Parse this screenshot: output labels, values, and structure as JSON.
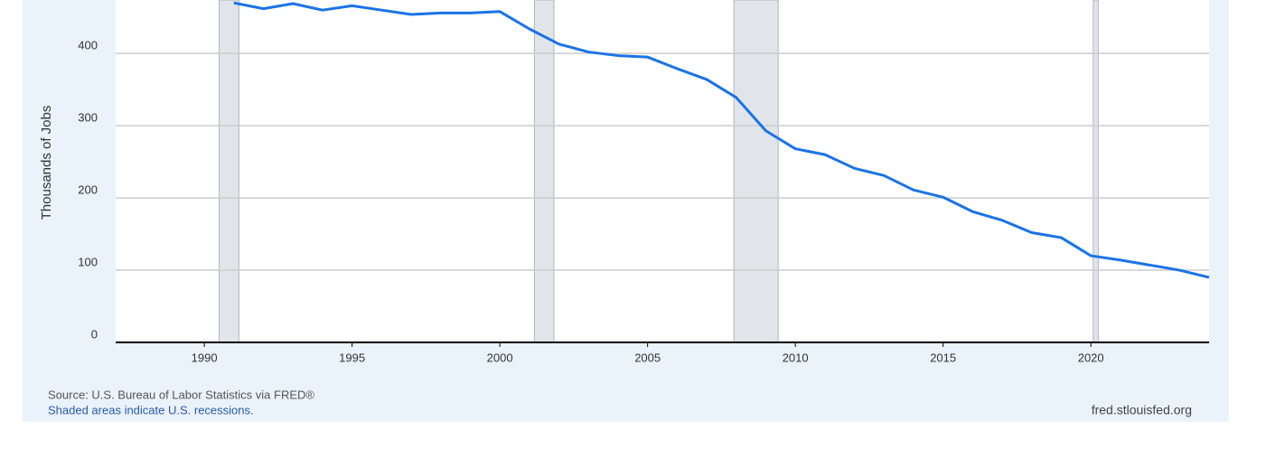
{
  "chart_data": {
    "type": "line",
    "y_label": "Thousands of Jobs",
    "source": "Source: U.S. Bureau of Labor Statistics via FRED®",
    "note": "Shaded areas indicate U.S. recessions.",
    "credit": "fred.stlouisfed.org",
    "x": [
      1991,
      1992,
      1993,
      1994,
      1995,
      1996,
      1997,
      1998,
      1999,
      2000,
      2001,
      2002,
      2003,
      2004,
      2005,
      2006,
      2007,
      2008,
      2009,
      2010,
      2011,
      2012,
      2013,
      2014,
      2015,
      2016,
      2017,
      2018,
      2019,
      2020,
      2021,
      2022,
      2023,
      2024
    ],
    "series": [
      {
        "color": "#1a73e8",
        "values": [
          470,
          462,
          469,
          460,
          466,
          460,
          454,
          456,
          456,
          458,
          434,
          413,
          402,
          397,
          395,
          379,
          364,
          339,
          293,
          268,
          260,
          241,
          231,
          211,
          201,
          181,
          169,
          152,
          145,
          120,
          114,
          107,
          100,
          90
        ]
      }
    ],
    "recessions": [
      [
        1990.5,
        1991.17
      ],
      [
        2001.17,
        2001.83
      ],
      [
        2007.92,
        2009.42
      ],
      [
        2020.08,
        2020.25
      ]
    ],
    "xlim": [
      1987,
      2024
    ],
    "xticks": [
      1990,
      1995,
      2000,
      2005,
      2010,
      2015,
      2020
    ],
    "ylim": [
      0,
      474
    ],
    "yticks": [
      0,
      100,
      200,
      300,
      400
    ],
    "grid": true
  }
}
